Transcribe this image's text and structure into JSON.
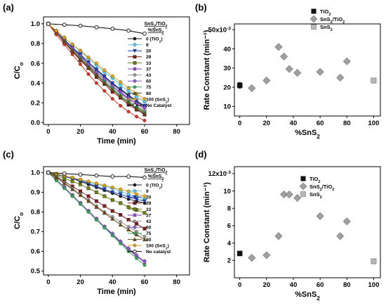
{
  "panel_labels": [
    "(a)",
    "(b)",
    "(c)",
    "(d)"
  ],
  "chart_data": [
    {
      "type": "line",
      "panel": "(a)",
      "xlabel": "Time (min)",
      "ylabel": "C/Co",
      "xlim": [
        -3,
        88
      ],
      "ylim": [
        -0.02,
        1.07
      ],
      "xticks": [
        0,
        20,
        40,
        60,
        80
      ],
      "yticks": [
        0.0,
        0.2,
        0.4,
        0.6,
        0.8,
        1.0
      ],
      "xtick_labels": [
        "0",
        "20",
        "40",
        "60",
        "80"
      ],
      "ytick_labels": [
        "0.0",
        "0.2",
        "0.4",
        "0.6",
        "0.8",
        "1.0"
      ],
      "legend_title": [
        "SnS2/TiO2",
        "%SnS2"
      ],
      "x": [
        0,
        5,
        10,
        15,
        20,
        25,
        30,
        35,
        40,
        45,
        50,
        55,
        60
      ],
      "series": [
        {
          "name": "0 (TiO2)",
          "color": "#1a1a1a",
          "marker": "circle",
          "values": [
            1.0,
            0.92,
            0.84,
            0.76,
            0.68,
            0.61,
            0.53,
            0.46,
            0.39,
            0.33,
            0.27,
            0.21,
            0.16
          ]
        },
        {
          "name": "9",
          "color": "#5bc8ee",
          "marker": "diamond",
          "values": [
            1.0,
            0.93,
            0.86,
            0.79,
            0.72,
            0.65,
            0.58,
            0.51,
            0.45,
            0.38,
            0.32,
            0.26,
            0.21
          ]
        },
        {
          "name": "20",
          "color": "#1f3fae",
          "marker": "triangle-down",
          "values": [
            1.0,
            0.92,
            0.84,
            0.76,
            0.69,
            0.61,
            0.54,
            0.47,
            0.4,
            0.34,
            0.28,
            0.22,
            0.17
          ]
        },
        {
          "name": "29",
          "color": "#7a1d1d",
          "marker": "square",
          "values": [
            1.0,
            0.91,
            0.81,
            0.72,
            0.63,
            0.55,
            0.46,
            0.39,
            0.31,
            0.25,
            0.18,
            0.13,
            0.08
          ]
        },
        {
          "name": "33",
          "color": "#6f7f1a",
          "marker": "square",
          "values": [
            1.0,
            0.91,
            0.82,
            0.73,
            0.65,
            0.57,
            0.49,
            0.41,
            0.34,
            0.27,
            0.21,
            0.16,
            0.11
          ]
        },
        {
          "name": "37",
          "color": "#7e3aa3",
          "marker": "cross",
          "values": [
            1.0,
            0.92,
            0.83,
            0.75,
            0.67,
            0.59,
            0.51,
            0.44,
            0.37,
            0.3,
            0.24,
            0.19,
            0.14
          ]
        },
        {
          "name": "43",
          "color": "#9a9a9a",
          "marker": "circle",
          "values": [
            1.0,
            0.91,
            0.82,
            0.74,
            0.66,
            0.58,
            0.5,
            0.42,
            0.35,
            0.29,
            0.23,
            0.17,
            0.12
          ]
        },
        {
          "name": "60",
          "color": "#8a5cc8",
          "marker": "diamond",
          "values": [
            1.0,
            0.92,
            0.83,
            0.75,
            0.67,
            0.59,
            0.51,
            0.44,
            0.37,
            0.31,
            0.25,
            0.19,
            0.15
          ]
        },
        {
          "name": "75",
          "color": "#3aa05a",
          "marker": "circle",
          "values": [
            1.0,
            0.91,
            0.82,
            0.73,
            0.65,
            0.56,
            0.48,
            0.41,
            0.34,
            0.27,
            0.21,
            0.15,
            0.1
          ]
        },
        {
          "name": "80",
          "color": "#6b4a1a",
          "marker": "triangle-up",
          "values": [
            1.0,
            0.91,
            0.82,
            0.73,
            0.64,
            0.56,
            0.48,
            0.4,
            0.33,
            0.26,
            0.2,
            0.14,
            0.09
          ]
        },
        {
          "name": "100 (SnS2)",
          "color": "#d6a21f",
          "marker": "circle",
          "values": [
            1.0,
            0.93,
            0.86,
            0.79,
            0.73,
            0.66,
            0.6,
            0.53,
            0.47,
            0.41,
            0.35,
            0.29,
            0.24
          ]
        },
        {
          "name": "Red",
          "color": "#c23a2a",
          "marker": "circle",
          "legend": false,
          "values": [
            1.0,
            0.89,
            0.79,
            0.69,
            0.59,
            0.49,
            0.4,
            0.32,
            0.24,
            0.17,
            0.11,
            0.06,
            0.02
          ]
        },
        {
          "name": "No Catalyst",
          "color": "#000000",
          "marker": "open-circle",
          "values": [
            1.0,
            null,
            0.99,
            null,
            0.98,
            null,
            0.965,
            null,
            0.95,
            null,
            0.93,
            null,
            0.9
          ]
        }
      ]
    },
    {
      "type": "scatter",
      "panel": "(b)",
      "xlabel": "%SnS2",
      "ylabel": "Rate Constant (min⁻¹)",
      "xlim": [
        -4,
        105
      ],
      "ylim": [
        5,
        53
      ],
      "xticks": [
        0,
        20,
        40,
        60,
        80,
        100
      ],
      "yticks": [
        10,
        20,
        30,
        40,
        50
      ],
      "xtick_labels": [
        "0",
        "20",
        "40",
        "60",
        "80",
        "100"
      ],
      "ytick_labels": [
        "10",
        "20",
        "30",
        "40",
        "50x10"
      ],
      "y_exponent": "-3",
      "legend_position": "top-right",
      "series": [
        {
          "name": "TiO2",
          "marker": "square",
          "color": "#111111",
          "x": [
            0
          ],
          "y": [
            21
          ],
          "yerr": [
            1.5
          ]
        },
        {
          "name": "SnS2/TiO2",
          "marker": "diamond",
          "color": "#a0a0a0",
          "x": [
            9,
            20,
            29,
            33,
            37,
            43,
            60,
            75,
            80
          ],
          "y": [
            19.5,
            23.5,
            41,
            36,
            29.5,
            27.5,
            28,
            25,
            33.5
          ]
        },
        {
          "name": "SnS2",
          "marker": "square",
          "color": "#b8b8b8",
          "x": [
            100
          ],
          "y": [
            23.5
          ]
        }
      ]
    },
    {
      "type": "line",
      "panel": "(c)",
      "xlabel": "Time (min)",
      "ylabel": "C/Co",
      "xlim": [
        -3,
        88
      ],
      "ylim": [
        0.48,
        1.03
      ],
      "xticks": [
        0,
        20,
        40,
        60,
        80
      ],
      "yticks": [
        0.5,
        0.6,
        0.7,
        0.8,
        0.9,
        1.0
      ],
      "xtick_labels": [
        "0",
        "20",
        "40",
        "60",
        "80"
      ],
      "ytick_labels": [
        "0.5",
        "0.6",
        "0.7",
        "0.8",
        "0.9",
        "1.0"
      ],
      "legend_title": [
        "SnS2/TiO2",
        "%SnS2"
      ],
      "x": [
        0,
        5,
        10,
        15,
        20,
        25,
        30,
        35,
        40,
        45,
        50,
        55,
        60
      ],
      "series": [
        {
          "name": "0 (TiO2)",
          "color": "#1a1a1a",
          "marker": "circle",
          "values": [
            1.0,
            0.99,
            0.98,
            0.97,
            0.955,
            0.94,
            0.925,
            0.91,
            0.895,
            0.88,
            0.865,
            0.855,
            0.845
          ]
        },
        {
          "name": "9",
          "color": "#5bc8ee",
          "marker": "diamond",
          "values": [
            1.0,
            0.99,
            0.98,
            0.97,
            0.96,
            0.95,
            0.94,
            0.93,
            0.92,
            0.905,
            0.89,
            0.88,
            0.865
          ]
        },
        {
          "name": "20",
          "color": "#1f3fae",
          "marker": "triangle-down",
          "values": [
            1.0,
            0.99,
            0.98,
            0.97,
            0.96,
            0.945,
            0.93,
            0.915,
            0.9,
            0.89,
            0.875,
            0.865,
            0.855
          ]
        },
        {
          "name": "29",
          "color": "#7a1d1d",
          "marker": "square",
          "values": [
            1.0,
            0.98,
            0.955,
            0.93,
            0.905,
            0.88,
            0.855,
            0.83,
            0.805,
            0.785,
            0.76,
            0.74,
            0.715
          ]
        },
        {
          "name": "33",
          "color": "#6f7f1a",
          "marker": "square",
          "values": [
            1.0,
            0.985,
            0.97,
            0.955,
            0.94,
            0.92,
            0.9,
            0.88,
            0.86,
            0.845,
            0.825,
            0.81,
            0.795
          ]
        },
        {
          "name": "37",
          "color": "#7e3aa3",
          "marker": "cross",
          "values": [
            1.0,
            0.965,
            0.925,
            0.885,
            0.845,
            0.805,
            0.765,
            0.725,
            0.685,
            0.645,
            0.61,
            0.575,
            0.545
          ]
        },
        {
          "name": "43",
          "color": "#9a9a9a",
          "marker": "circle",
          "values": [
            1.0,
            0.975,
            0.95,
            0.92,
            0.89,
            0.86,
            0.83,
            0.8,
            0.775,
            0.75,
            0.725,
            0.7,
            0.675
          ]
        },
        {
          "name": "60",
          "color": "#8a5cc8",
          "marker": "diamond",
          "values": [
            1.0,
            0.965,
            0.925,
            0.885,
            0.845,
            0.805,
            0.765,
            0.725,
            0.69,
            0.65,
            0.615,
            0.58,
            0.55
          ]
        },
        {
          "name": "75",
          "color": "#3aa05a",
          "marker": "circle",
          "values": [
            1.0,
            0.96,
            0.92,
            0.88,
            0.84,
            0.8,
            0.76,
            0.72,
            0.68,
            0.64,
            0.6,
            0.565,
            0.53
          ]
        },
        {
          "name": "80",
          "color": "#6b4a1a",
          "marker": "triangle-up",
          "values": [
            1.0,
            0.975,
            0.945,
            0.915,
            0.885,
            0.855,
            0.825,
            0.795,
            0.765,
            0.735,
            0.71,
            0.685,
            0.66
          ]
        },
        {
          "name": "100 (SnS2)",
          "color": "#d6a21f",
          "marker": "circle",
          "values": [
            1.0,
            0.995,
            0.985,
            0.975,
            0.965,
            0.955,
            0.945,
            0.935,
            0.925,
            0.915,
            0.905,
            0.89,
            0.88
          ]
        },
        {
          "name": "No catalyst",
          "color": "#000000",
          "marker": "open-circle",
          "values": [
            1.0,
            null,
            0.995,
            null,
            0.99,
            null,
            0.985,
            null,
            0.98,
            null,
            0.98,
            null,
            0.975
          ]
        }
      ]
    },
    {
      "type": "scatter",
      "panel": "(d)",
      "xlabel": "%SnS2",
      "ylabel": "Rate Constant (min⁻¹)",
      "xlim": [
        -4,
        105
      ],
      "ylim": [
        0,
        12.8
      ],
      "xticks": [
        0,
        20,
        40,
        60,
        80,
        100
      ],
      "yticks": [
        2,
        4,
        6,
        8,
        10,
        12
      ],
      "xtick_labels": [
        "0",
        "20",
        "40",
        "60",
        "80",
        "100"
      ],
      "ytick_labels": [
        "2",
        "4",
        "6",
        "8",
        "10",
        "12x10"
      ],
      "y_exponent": "-3",
      "legend_position": "top-right",
      "series": [
        {
          "name": "TiO2",
          "marker": "square",
          "color": "#111111",
          "x": [
            0
          ],
          "y": [
            2.8
          ]
        },
        {
          "name": "SnS2/TiO2",
          "marker": "diamond",
          "color": "#a0a0a0",
          "x": [
            9,
            20,
            29,
            33,
            37,
            43,
            60,
            75,
            80
          ],
          "y": [
            2.3,
            2.6,
            4.8,
            9.6,
            9.6,
            9.2,
            7.1,
            4.8,
            6.5
          ]
        },
        {
          "name": "SnS2",
          "marker": "square",
          "color": "#b8b8b8",
          "x": [
            100
          ],
          "y": [
            1.9
          ]
        }
      ]
    }
  ]
}
